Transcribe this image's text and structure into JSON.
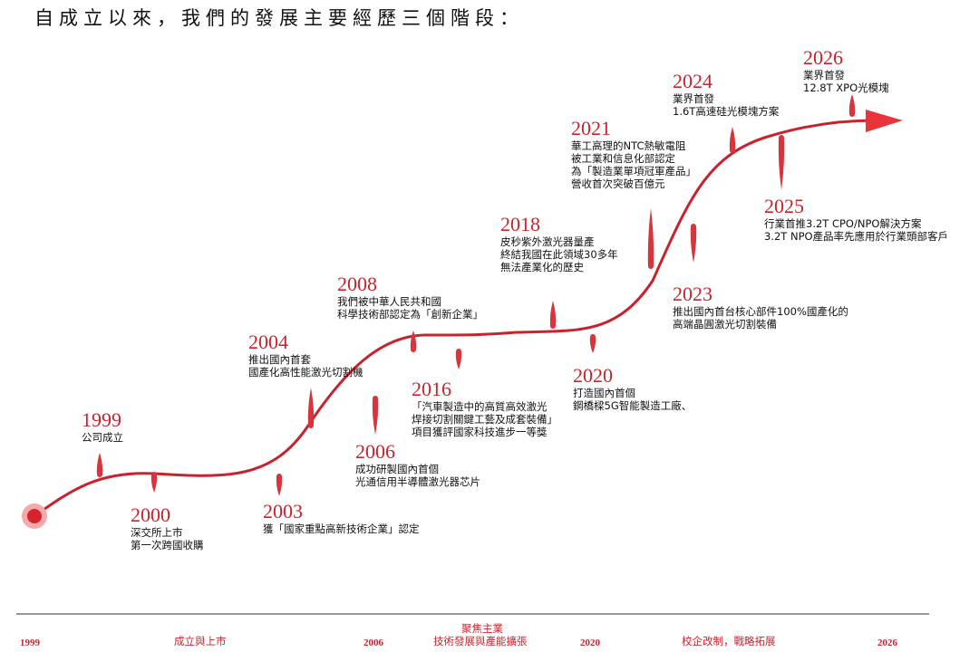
{
  "heading": "自成立以來，我們的發展主要經歷三個階段：",
  "colors": {
    "accent": "#c8232c",
    "text": "#111111",
    "rule": "#999999"
  },
  "milestones": [
    {
      "year": "1999",
      "lines": [
        "公司成立"
      ]
    },
    {
      "year": "2000",
      "lines": [
        "深交所上市",
        "第一次跨國收購"
      ]
    },
    {
      "year": "2003",
      "lines": [
        "獲「國家重點高新技術企業」認定"
      ]
    },
    {
      "year": "2004",
      "lines": [
        "推出國內首套",
        "國產化高性能激光切割機"
      ]
    },
    {
      "year": "2006",
      "lines": [
        "成功研製國內首個",
        "光通信用半導體激光器芯片"
      ]
    },
    {
      "year": "2008",
      "lines": [
        "我們被中華人民共和國",
        "科學技術部認定為「創新企業」"
      ]
    },
    {
      "year": "2016",
      "lines": [
        "「汽車製造中的高質高效激光",
        "焊接切割關鍵工藝及成套裝備」",
        "項目獲評國家科技進步一等獎"
      ]
    },
    {
      "year": "2018",
      "lines": [
        "皮秒紫外激光器量產",
        "終結我國在此領域30多年",
        "無法產業化的歷史"
      ]
    },
    {
      "year": "2020",
      "lines": [
        "打造國內首個",
        "鋼橋樑5G智能製造工廠、"
      ]
    },
    {
      "year": "2021",
      "lines": [
        "華工高理的NTC熱敏電阻",
        "被工業和信息化部認定",
        "為「製造業單項冠軍產品」",
        "營收首次突破百億元"
      ]
    },
    {
      "year": "2023",
      "lines": [
        "推出國內首台核心部件100%國產化的",
        "高端晶圓激光切割裝備"
      ]
    },
    {
      "year": "2024",
      "lines": [
        "業界首發",
        "1.6T高速硅光模塊方案"
      ]
    },
    {
      "year": "2025",
      "lines": [
        "行業首推3.2T CPO/NPO解決方案",
        "3.2T NPO產品率先應用於行業頭部客戶"
      ]
    },
    {
      "year": "2026",
      "lines": [
        "業界首發",
        "12.8T XPO光模塊"
      ]
    }
  ],
  "phases": {
    "y1999": "1999",
    "stage1": "成立與上市",
    "y2006": "2006",
    "stage2_line1": "聚焦主業",
    "stage2_line2": "技術發展與產能擴張",
    "y2020": "2020",
    "stage3": "校企改制，戰略拓展",
    "y2026": "2026"
  }
}
